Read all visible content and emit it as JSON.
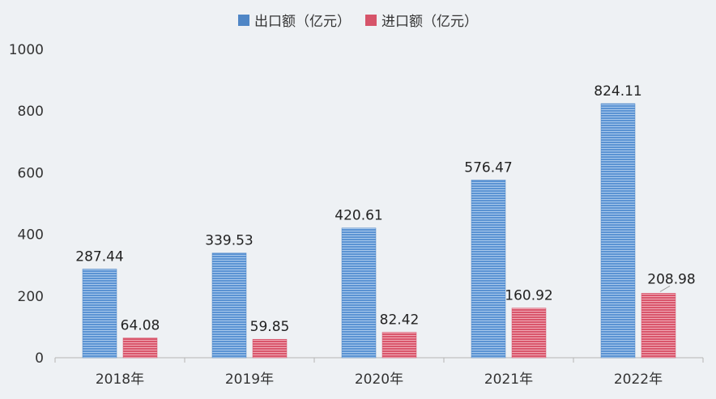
{
  "chart_data": {
    "type": "bar",
    "categories": [
      "2018年",
      "2019年",
      "2020年",
      "2021年",
      "2022年"
    ],
    "series": [
      {
        "name": "出口额（亿元）",
        "values": [
          287.44,
          339.53,
          420.61,
          576.47,
          824.11
        ],
        "color": "#4f86c6"
      },
      {
        "name": "进口额（亿元）",
        "values": [
          64.08,
          59.85,
          82.42,
          160.92,
          208.98
        ],
        "color": "#d6546a"
      }
    ],
    "value_labels": {
      "0": [
        "287.44",
        "339.53",
        "420.61",
        "576.47",
        "824.11"
      ],
      "1": [
        "64.08",
        "59.85",
        "82.42",
        "160.92",
        "208.98"
      ]
    },
    "y_ticks": [
      "0",
      "200",
      "400",
      "600",
      "800",
      "1000"
    ],
    "ylim": [
      0,
      1000
    ],
    "legend_position": "top-center",
    "grid": false
  }
}
